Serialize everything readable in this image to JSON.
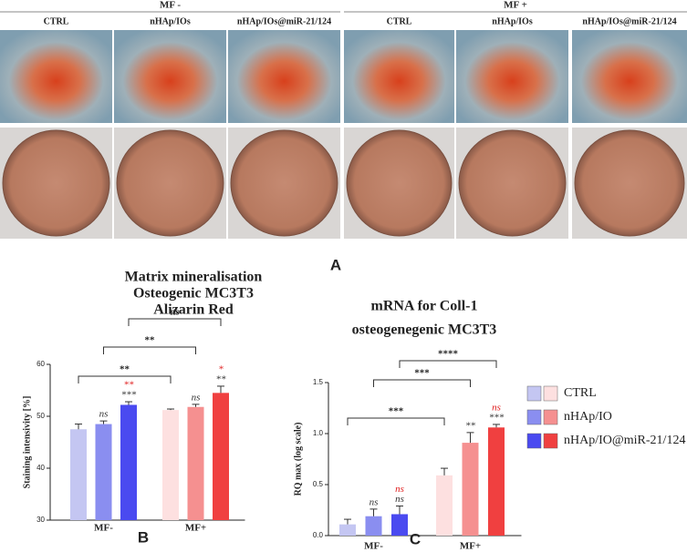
{
  "panel_a": {
    "label": "A",
    "groups": [
      {
        "label": "MF -",
        "columns": [
          "CTRL",
          "nHAp/IOs",
          "nHAp/IOs@miR-21/124"
        ]
      },
      {
        "label": "MF +",
        "columns": [
          "CTRL",
          "nHAp/IOs",
          "nHAp/IOs@miR-21/124"
        ]
      }
    ]
  },
  "chart_data": [
    {
      "type": "bar",
      "panel_label": "B",
      "title": [
        "Matrix mineralisation",
        "Osteogenic MC3T3",
        "Alizarin Red"
      ],
      "y_label": "Staining intensivity [%]",
      "categories": [
        "MF-",
        "MF+"
      ],
      "ylim": [
        30,
        60
      ],
      "yticks": [
        30,
        40,
        50,
        60
      ],
      "series": [
        {
          "colors": [
            "#c4c6f2",
            "#fde0e0"
          ],
          "values": [
            47.5,
            51.2
          ],
          "errors": [
            1.0,
            0.2
          ],
          "annotations": [
            [],
            []
          ]
        },
        {
          "colors": [
            "#8a8ef0",
            "#f59090"
          ],
          "values": [
            48.5,
            51.8
          ],
          "errors": [
            0.6,
            0.5
          ],
          "annotations": [
            [
              {
                "text": "ns",
                "color": "#333333"
              }
            ],
            [
              {
                "text": "ns",
                "color": "#333333"
              }
            ]
          ]
        },
        {
          "colors": [
            "#4a4af0",
            "#f04040"
          ],
          "values": [
            52.2,
            54.5
          ],
          "errors": [
            0.6,
            1.3
          ],
          "annotations": [
            [
              {
                "text": "***",
                "color": "#333333"
              },
              {
                "text": "**",
                "color": "#e02020"
              }
            ],
            [
              {
                "text": "**",
                "color": "#333333"
              },
              {
                "text": "*",
                "color": "#e02020"
              }
            ]
          ]
        }
      ],
      "comparisons": [
        "**",
        "**",
        "ns"
      ]
    },
    {
      "type": "bar",
      "panel_label": "C",
      "title": [
        "mRNA for Coll-1",
        "osteogenegenic MC3T3"
      ],
      "y_label": "RQ max (log scale)",
      "categories": [
        "MF-",
        "MF+"
      ],
      "ylim": [
        0,
        1.5
      ],
      "yticks": [
        {
          "value": 0,
          "label": "0.0"
        },
        {
          "value": 0.5,
          "label": "0.5"
        },
        {
          "value": 1,
          "label": "1.0"
        },
        {
          "value": 1.5,
          "label": "1.5"
        }
      ],
      "legend": true,
      "series": [
        {
          "name": "CTRL",
          "colors": [
            "#c4c6f2",
            "#fde0e0"
          ],
          "values": [
            0.11,
            0.59
          ],
          "errors": [
            0.05,
            0.07
          ],
          "annotations": [
            [],
            []
          ]
        },
        {
          "name": "nHAp/IO",
          "colors": [
            "#8a8ef0",
            "#f59090"
          ],
          "values": [
            0.19,
            0.91
          ],
          "errors": [
            0.07,
            0.1
          ],
          "annotations": [
            [
              {
                "text": "ns",
                "color": "#333333"
              }
            ],
            [
              {
                "text": "**",
                "color": "#333333"
              }
            ]
          ]
        },
        {
          "name": "nHAp/IO@miR-21/124",
          "colors": [
            "#4a4af0",
            "#f04040"
          ],
          "values": [
            0.21,
            1.06
          ],
          "errors": [
            0.08,
            0.03
          ],
          "annotations": [
            [
              {
                "text": "ns",
                "color": "#333333"
              },
              {
                "text": "ns",
                "color": "#e02020"
              }
            ],
            [
              {
                "text": "***",
                "color": "#333333"
              },
              {
                "text": "ns",
                "color": "#e02020"
              }
            ]
          ]
        }
      ],
      "comparisons": [
        "***",
        "***",
        "****"
      ]
    }
  ]
}
